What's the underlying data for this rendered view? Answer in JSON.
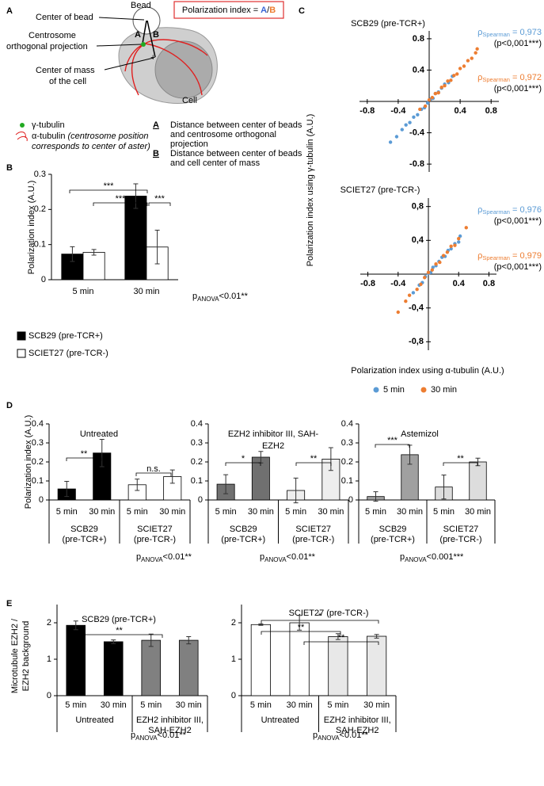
{
  "panel_a": {
    "panel": "A",
    "bead": "Bead",
    "center_of_bead": "Center of bead",
    "centrosome": [
      "Centrosome",
      "orthogonal projection"
    ],
    "center_of_mass": [
      "Center of mass",
      "of the cell"
    ],
    "cell": "Cell",
    "index": {
      "text": "Polarization index =",
      "a": "A",
      "slash": "/",
      "b": "B"
    },
    "marker_a": "A",
    "marker_b": "B",
    "gamma": "γ-tubulin",
    "alpha": "α-tubulin",
    "alpha_note": [
      "(centrosome position",
      "corresponds to center of aster)"
    ],
    "legend": [
      {
        "symbol": "A",
        "text": [
          "Distance between center of beads",
          "and centrosome orthogonal",
          "projection"
        ]
      },
      {
        "symbol": "B",
        "text": [
          "Distance between center of beads",
          "and cell center of mass"
        ]
      }
    ]
  },
  "chart_data": [
    {
      "type": "bar",
      "panel": "B",
      "y_label": "Polarization index (A.U.)",
      "categories": [
        "5 min",
        "30 min"
      ],
      "series": [
        {
          "name": "SCB29 (pre-TCR+)",
          "color": "#000000",
          "values": [
            0.073,
            0.238
          ],
          "errors": [
            0.021,
            0.035
          ]
        },
        {
          "name": "SCIET27 (pre-TCR-)",
          "color": "#ffffff",
          "values": [
            0.078,
            0.093
          ],
          "errors": [
            0.008,
            0.048
          ]
        }
      ],
      "ylim": [
        0,
        0.3
      ],
      "yticks": [
        0,
        0.1,
        0.2,
        0.3
      ],
      "significance": [
        "***",
        "***",
        "***"
      ],
      "anova": {
        "p": "p",
        "sub": "ANOVA",
        "text": "<0.01**"
      }
    },
    {
      "type": "scatter",
      "panel": "C",
      "title": "SCB29 (pre-TCR+)",
      "xlim": [
        -0.9,
        0.9
      ],
      "ylim": [
        -0.9,
        0.9
      ],
      "xticks": [
        -0.8,
        -0.4,
        0.4,
        0.8
      ],
      "yticks": [
        -0.8,
        -0.4,
        0.4,
        0.8
      ],
      "series": [
        {
          "color": "#5b9bd5",
          "x": [
            -0.5,
            -0.42,
            -0.35,
            -0.3,
            -0.25,
            -0.2,
            -0.15,
            -0.1,
            -0.06,
            -0.02,
            0.02,
            0.05,
            0.08,
            0.12,
            0.16,
            0.2,
            0.25,
            0.3
          ],
          "y": [
            -0.52,
            -0.45,
            -0.36,
            -0.3,
            -0.27,
            -0.2,
            -0.17,
            -0.1,
            -0.08,
            -0.02,
            0.03,
            0.04,
            0.1,
            0.12,
            0.17,
            0.22,
            0.24,
            0.32
          ],
          "spearman": {
            "symbol": "ρ",
            "sub": "Spearman",
            "value": "= 0,973",
            "p": "(p<0,001***)"
          }
        },
        {
          "color": "#ed7d31",
          "x": [
            -0.12,
            -0.05,
            0,
            0.04,
            0.08,
            0.12,
            0.16,
            0.2,
            0.24,
            0.28,
            0.32,
            0.36,
            0.4,
            0.45,
            0.5,
            0.55,
            0.6,
            0.62
          ],
          "y": [
            -0.1,
            -0.06,
            0.02,
            0.05,
            0.1,
            0.11,
            0.18,
            0.2,
            0.26,
            0.27,
            0.33,
            0.35,
            0.42,
            0.45,
            0.52,
            0.55,
            0.62,
            0.67
          ],
          "spearman": {
            "symbol": "ρ",
            "sub": "Spearman",
            "value": "= 0,972",
            "p": "(p<0,001***)"
          }
        }
      ]
    },
    {
      "type": "scatter",
      "title": "SCIET27 (pre-TCR-)",
      "x_label": "Polarization index using α-tubulin (A.U.)",
      "y_label": "Polarization index using γ-tubulin (A.U.)",
      "xlim": [
        -0.9,
        0.9
      ],
      "ylim": [
        -0.9,
        0.9
      ],
      "xticks": [
        -0.8,
        -0.4,
        0.4,
        0.8
      ],
      "yticks": [
        {
          "value": -0.8,
          "label": "-0,8"
        },
        {
          "value": -0.4,
          "label": "-0,4"
        },
        {
          "value": 0.4,
          "label": "0,4"
        },
        {
          "value": 0.8,
          "label": "0,8"
        }
      ],
      "series": [
        {
          "name": "5 min",
          "color": "#5b9bd5",
          "x": [
            -0.2,
            -0.12,
            -0.08,
            -0.04,
            0,
            0.03,
            0.06,
            0.1,
            0.14,
            0.18,
            0.22,
            0.26,
            0.3,
            0.35,
            0.4,
            0.42
          ],
          "y": [
            -0.22,
            -0.13,
            -0.1,
            -0.03,
            0.01,
            0.02,
            0.08,
            0.1,
            0.15,
            0.2,
            0.21,
            0.28,
            0.3,
            0.36,
            0.38,
            0.45
          ],
          "spearman": {
            "symbol": "ρ",
            "sub": "Spearman",
            "value": "= 0,976",
            "p": "(p<0,001***)"
          }
        },
        {
          "name": "30 min",
          "color": "#ed7d31",
          "x": [
            -0.4,
            -0.3,
            -0.25,
            -0.15,
            -0.1,
            -0.05,
            0,
            0.05,
            0.1,
            0.15,
            0.2,
            0.25,
            0.3,
            0.35,
            0.4,
            0.5
          ],
          "y": [
            -0.45,
            -0.32,
            -0.25,
            -0.18,
            -0.12,
            -0.04,
            0.02,
            0.05,
            0.12,
            0.14,
            0.22,
            0.26,
            0.33,
            0.34,
            0.42,
            0.55
          ],
          "spearman": {
            "symbol": "ρ",
            "sub": "Spearman",
            "value": "= 0,979",
            "p": "(p<0,001***)"
          }
        }
      ]
    },
    {
      "type": "bar",
      "panel": "D",
      "title": "Untreated",
      "y_label": "Polarization index (A.U.)",
      "groups": [
        {
          "label": [
            "SCB29",
            "(pre-TCR+)"
          ],
          "categories": [
            "5 min",
            "30 min"
          ],
          "values": [
            0.058,
            0.247
          ],
          "errors": [
            0.04,
            0.072
          ],
          "color": "#000000"
        },
        {
          "label": [
            "SCIET27",
            "(pre-TCR-)"
          ],
          "categories": [
            "5 min",
            "30 min"
          ],
          "values": [
            0.08,
            0.123
          ],
          "errors": [
            0.03,
            0.035
          ],
          "color": "#ffffff"
        }
      ],
      "ylim": [
        0,
        0.4
      ],
      "yticks": [
        0,
        0.1,
        0.2,
        0.3,
        0.4
      ],
      "significance": [
        "**",
        "n.s."
      ],
      "anova": {
        "p": "p",
        "sub": "ANOVA",
        "text": "<0.01**"
      }
    },
    {
      "type": "bar",
      "title": [
        "EZH2 inhibitor III, SAH-",
        "EZH2"
      ],
      "groups": [
        {
          "label": [
            "SCB29",
            "(pre-TCR+)"
          ],
          "categories": [
            "5 min",
            "30 min"
          ],
          "values": [
            0.083,
            0.225
          ],
          "errors": [
            0.05,
            0.03
          ],
          "color": "#707070"
        },
        {
          "label": [
            "SCIET27",
            "(pre-TCR-)"
          ],
          "categories": [
            "5 min",
            "30 min"
          ],
          "values": [
            0.05,
            0.215
          ],
          "errors": [
            0.065,
            0.06
          ],
          "color": "#eeeeee"
        }
      ],
      "ylim": [
        0,
        0.4
      ],
      "yticks": [
        0,
        0.1,
        0.2,
        0.3,
        0.4
      ],
      "significance": [
        "*",
        "**"
      ],
      "anova": {
        "p": "p",
        "sub": "ANOVA",
        "text": "<0.01**"
      }
    },
    {
      "type": "bar",
      "title": "Astemizol",
      "groups": [
        {
          "label": [
            "SCB29",
            "(pre-TCR+)"
          ],
          "categories": [
            "5 min",
            "30 min"
          ],
          "values": [
            0.018,
            0.238
          ],
          "errors": [
            0.025,
            0.05
          ],
          "color": "#a0a0a0"
        },
        {
          "label": [
            "SCIET27",
            "(pre-TCR-)"
          ],
          "categories": [
            "5 min",
            "30 min"
          ],
          "values": [
            0.068,
            0.2
          ],
          "errors": [
            0.063,
            0.02
          ],
          "color": "#dddddd"
        }
      ],
      "ylim": [
        0,
        0.4
      ],
      "yticks": [
        0,
        0.1,
        0.2,
        0.3,
        0.4
      ],
      "significance": [
        "***",
        "**"
      ],
      "anova": {
        "p": "p",
        "sub": "ANOVA",
        "text": "<0.001***"
      }
    },
    {
      "type": "bar",
      "panel": "E",
      "title": "SCB29 (pre-TCR+)",
      "y_label": [
        "Microtubule EZH2 /",
        "EZH2 background"
      ],
      "groups": [
        {
          "label": [
            "Untreated"
          ],
          "categories": [
            "5 min",
            "30 min"
          ],
          "values": [
            1.93,
            1.48
          ],
          "errors": [
            0.12,
            0.05
          ],
          "color": "#000000"
        },
        {
          "label": [
            "EZH2 inhibitor III,",
            "SAH-EZH2"
          ],
          "categories": [
            "5 min",
            "30 min"
          ],
          "values": [
            1.52,
            1.52
          ],
          "errors": [
            0.17,
            0.1
          ],
          "color": "#808080"
        }
      ],
      "ylim": [
        0,
        2.5
      ],
      "yticks": [
        0,
        1,
        2
      ],
      "significance": [
        "**"
      ],
      "anova": {
        "p": "p",
        "sub": "ANOVA",
        "text": "<0.01**"
      }
    },
    {
      "type": "bar",
      "title": "SCIET27 (pre-TCR-)",
      "groups": [
        {
          "label": [
            "Untreated"
          ],
          "categories": [
            "5 min",
            "30 min"
          ],
          "values": [
            1.95,
            2.0
          ],
          "errors": [
            0.02,
            0.2
          ],
          "color": "#ffffff"
        },
        {
          "label": [
            "EZH2 inhibitor III,",
            "SAH-EZH2"
          ],
          "categories": [
            "5 min",
            "30 min"
          ],
          "values": [
            1.62,
            1.63
          ],
          "errors": [
            0.08,
            0.05
          ],
          "color": "#e8e8e8"
        }
      ],
      "ylim": [
        0,
        2.5
      ],
      "yticks": [
        0,
        1,
        2
      ],
      "significance": [
        "*",
        "**",
        "**"
      ],
      "anova": {
        "p": "p",
        "sub": "ANOVA",
        "text": "<0.01**"
      }
    }
  ]
}
